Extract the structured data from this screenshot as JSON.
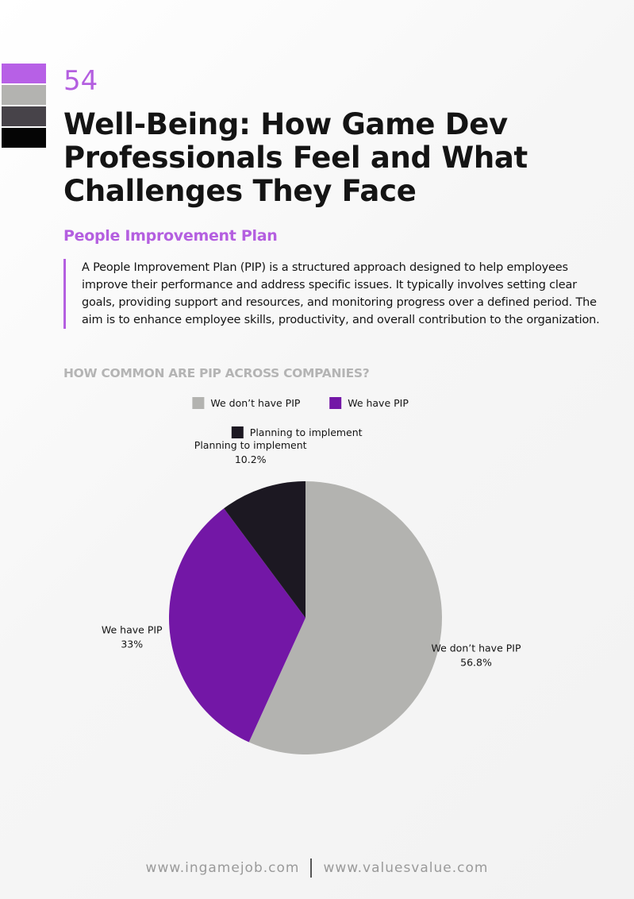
{
  "page": {
    "number": "54",
    "title": "Well-Being: How Game Dev Professionals Feel and What Challenges They Face",
    "swatch_colors": [
      "#b760e6",
      "#b3b3b0",
      "#474349",
      "#050505"
    ]
  },
  "section": {
    "title": "People Improvement Plan",
    "body": "A People Improvement Plan (PIP) is a structured approach designed to help employees improve their performance and address specific issues. It typically involves setting clear goals, providing support and resources, and monitoring progress over a defined period. The aim is to enhance employee skills, productivity, and overall contribution to the organization."
  },
  "chart_data": {
    "type": "pie",
    "title": "HOW COMMON ARE PIP ACROSS COMPANIES?",
    "legend_position": "top",
    "categories": [
      "We don’t have PIP",
      "We have PIP",
      "Planning to implement"
    ],
    "values": [
      56.8,
      33,
      10.2
    ],
    "value_labels": [
      "56.8%",
      "33%",
      "10.2%"
    ],
    "colors": [
      "#b3b3b0",
      "#7317a6",
      "#1c1822"
    ]
  },
  "footer": {
    "left": "www.ingamejob.com",
    "right": "www.valuesvalue.com"
  }
}
